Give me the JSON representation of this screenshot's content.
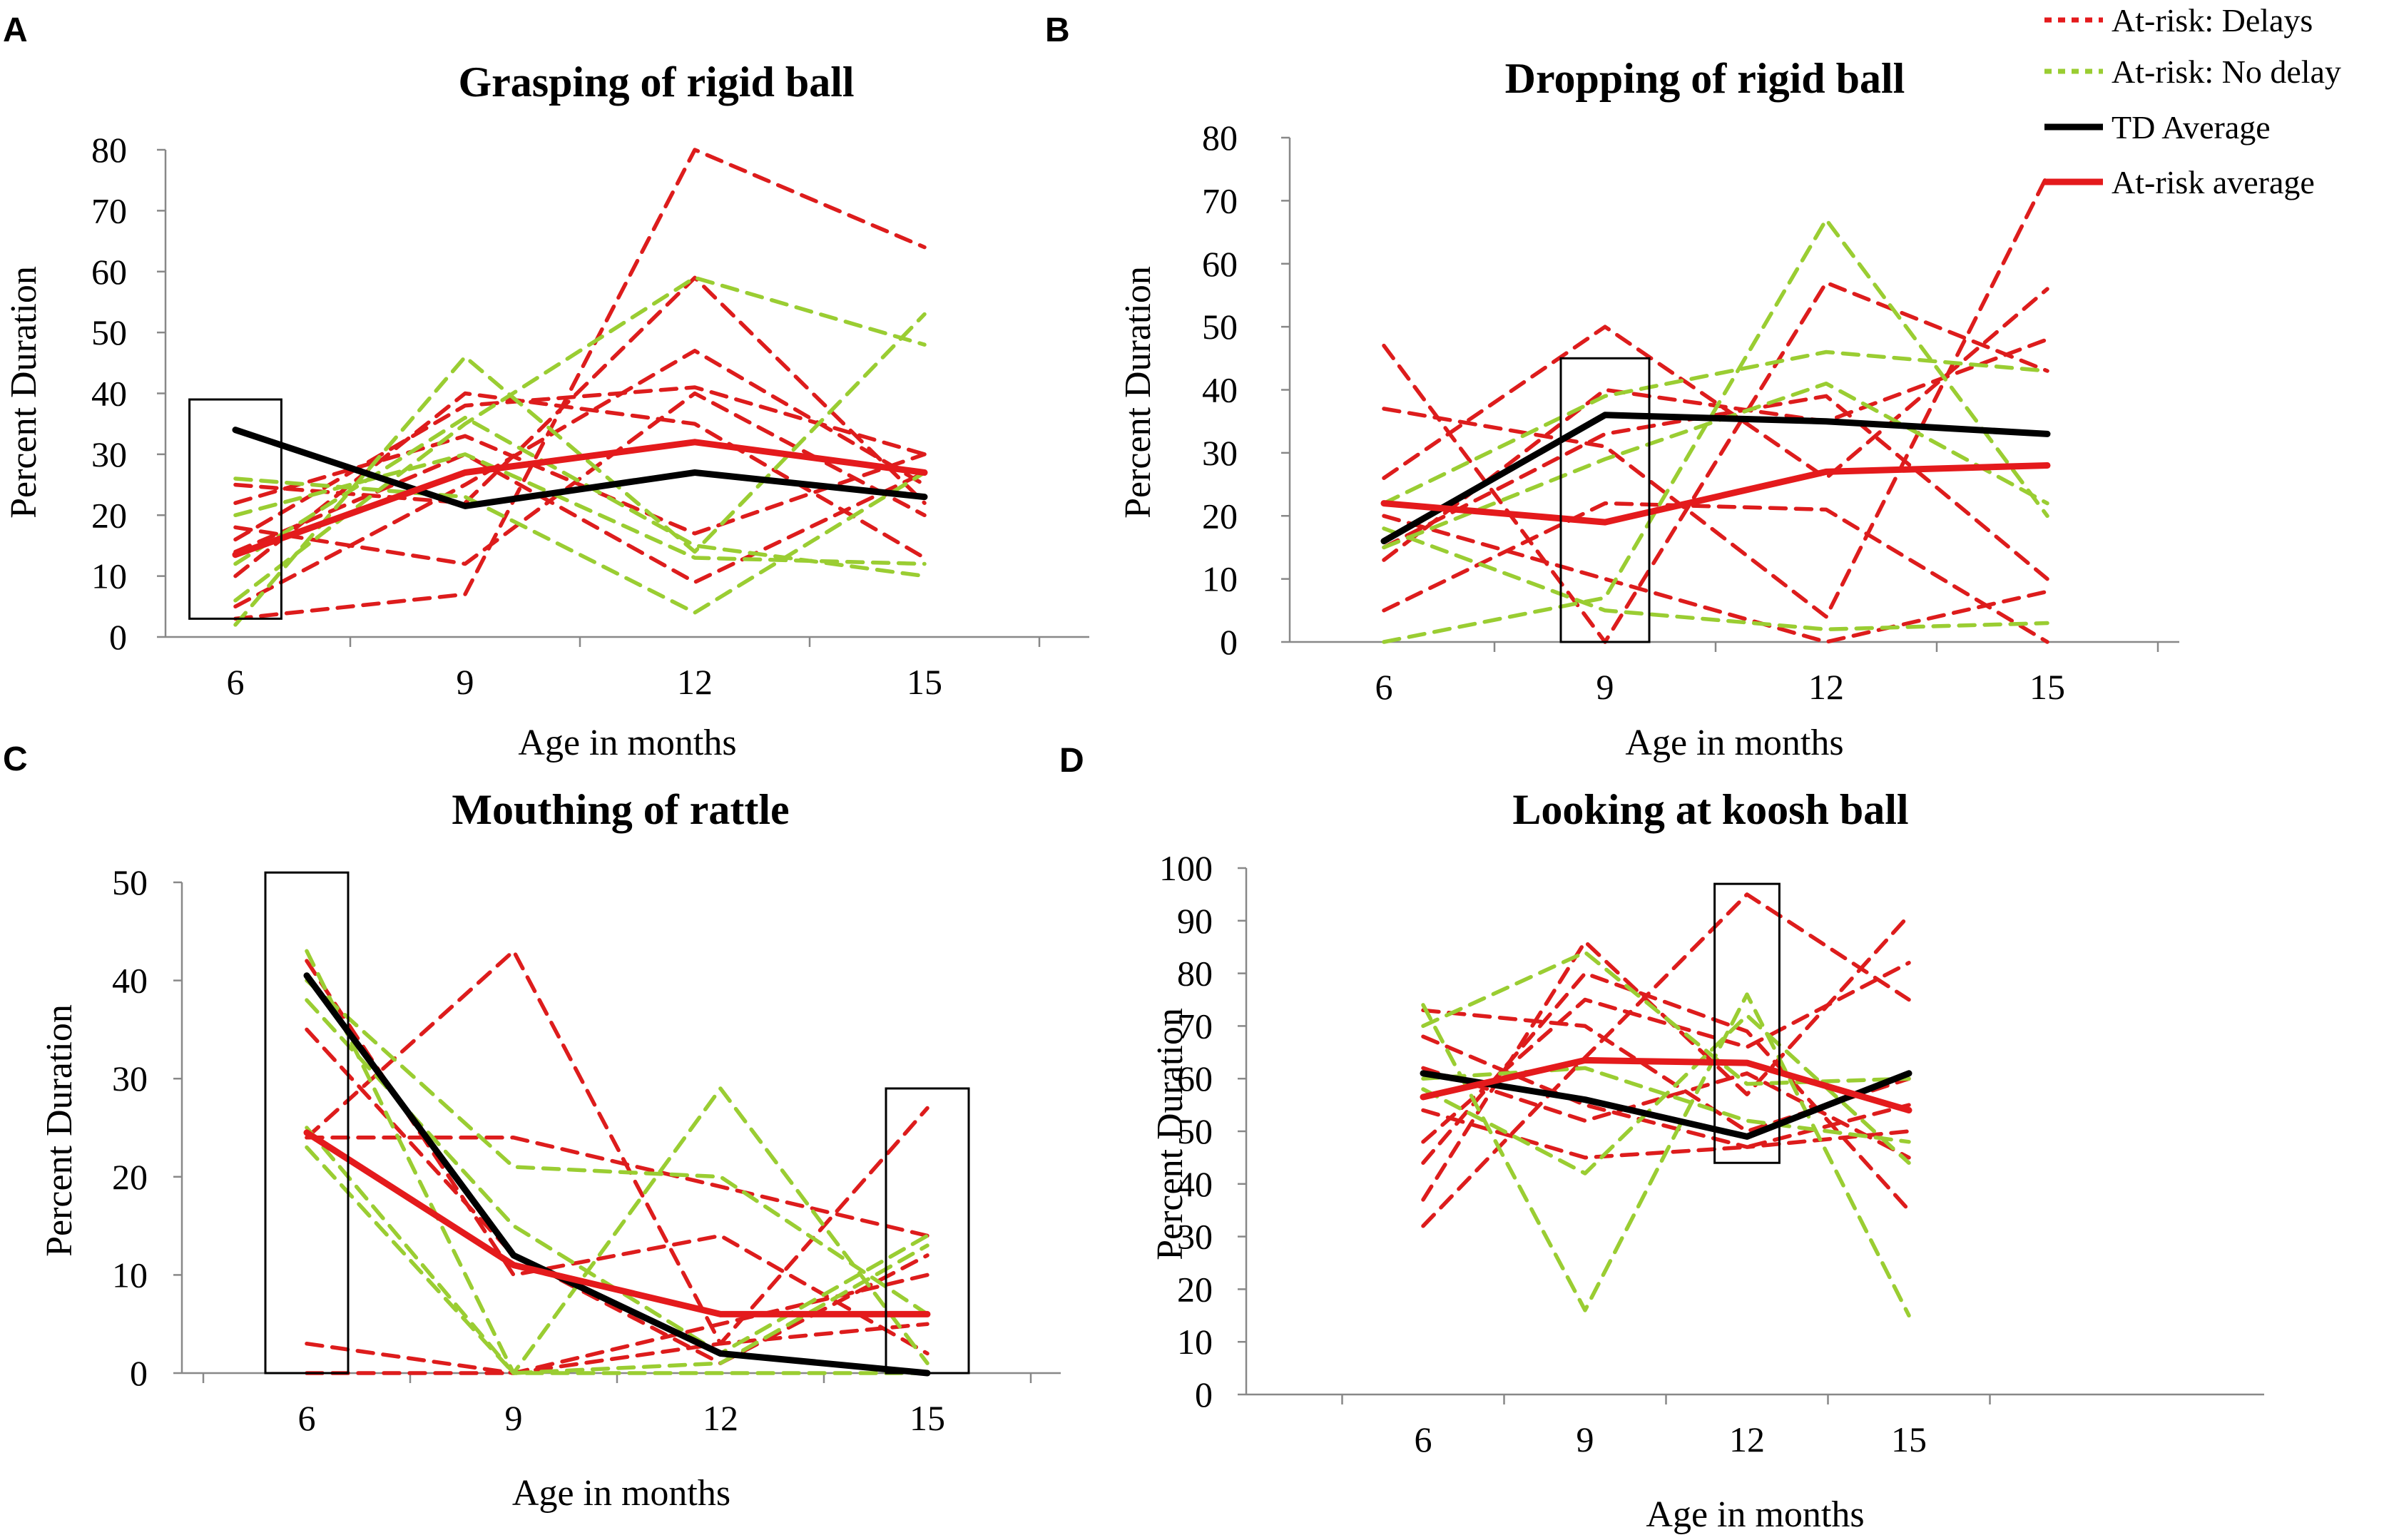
{
  "chart_data": [
    {
      "type": "line",
      "panel_letter": "A",
      "title": "Grasping of rigid ball",
      "xlabel": "Age in months",
      "ylabel": "Percent Duration",
      "x": [
        6,
        9,
        12,
        15
      ],
      "ylim": [
        0,
        80
      ],
      "yticks": [
        0,
        10,
        20,
        30,
        40,
        50,
        60,
        70,
        80
      ],
      "highlight_boxes": [
        {
          "x": 6,
          "y_range": [
            3,
            39
          ]
        }
      ],
      "series": [
        {
          "name": "At-risk: Delays",
          "values": [
            3,
            7,
            80,
            64
          ]
        },
        {
          "name": "At-risk: Delays",
          "values": [
            16,
            38,
            41,
            30
          ]
        },
        {
          "name": "At-risk: Delays",
          "values": [
            5,
            25,
            47,
            25
          ]
        },
        {
          "name": "At-risk: Delays",
          "values": [
            22,
            33,
            17,
            30
          ]
        },
        {
          "name": "At-risk: Delays",
          "values": [
            18,
            12,
            40,
            20
          ]
        },
        {
          "name": "At-risk: Delays",
          "values": [
            14,
            30,
            9,
            27
          ]
        },
        {
          "name": "At-risk: Delays",
          "values": [
            25,
            22,
            59,
            22
          ]
        },
        {
          "name": "At-risk: Delays",
          "values": [
            10,
            40,
            35,
            13
          ]
        },
        {
          "name": "At-risk: No delay",
          "values": [
            2,
            46,
            14,
            53
          ]
        },
        {
          "name": "At-risk: No delay",
          "values": [
            6,
            35,
            59,
            48
          ]
        },
        {
          "name": "At-risk: No delay",
          "values": [
            26,
            23,
            4,
            27
          ]
        },
        {
          "name": "At-risk: No delay",
          "values": [
            12,
            36,
            15,
            10
          ]
        },
        {
          "name": "At-risk: No delay",
          "values": [
            20,
            30,
            13,
            12
          ]
        },
        {
          "name": "TD Average",
          "values": [
            34,
            21.5,
            27,
            23
          ]
        },
        {
          "name": "At-risk average",
          "values": [
            13.5,
            27,
            32,
            27
          ]
        }
      ]
    },
    {
      "type": "line",
      "panel_letter": "B",
      "title": "Dropping of rigid ball",
      "xlabel": "Age in months",
      "ylabel": "Percent Duration",
      "x": [
        6,
        9,
        12,
        15
      ],
      "ylim": [
        0,
        80
      ],
      "yticks": [
        0,
        10,
        20,
        30,
        40,
        50,
        60,
        70,
        80
      ],
      "highlight_boxes": [
        {
          "x": 9,
          "y_range": [
            0,
            45
          ]
        }
      ],
      "series": [
        {
          "name": "At-risk: Delays",
          "values": [
            47,
            0,
            57,
            43
          ]
        },
        {
          "name": "At-risk: Delays",
          "values": [
            37,
            31,
            4,
            74
          ]
        },
        {
          "name": "At-risk: Delays",
          "values": [
            26,
            50,
            26,
            56
          ]
        },
        {
          "name": "At-risk: Delays",
          "values": [
            13,
            40,
            35,
            48
          ]
        },
        {
          "name": "At-risk: Delays",
          "values": [
            5,
            22,
            21,
            0
          ]
        },
        {
          "name": "At-risk: Delays",
          "values": [
            20,
            10,
            0,
            8
          ]
        },
        {
          "name": "At-risk: Delays",
          "values": [
            15,
            33,
            39,
            10
          ]
        },
        {
          "name": "At-risk: No delay",
          "values": [
            0,
            7,
            67,
            20
          ]
        },
        {
          "name": "At-risk: No delay",
          "values": [
            22,
            39,
            46,
            43
          ]
        },
        {
          "name": "At-risk: No delay",
          "values": [
            18,
            5,
            2,
            3
          ]
        },
        {
          "name": "At-risk: No delay",
          "values": [
            15,
            29,
            41,
            22
          ]
        },
        {
          "name": "TD Average",
          "values": [
            16,
            36,
            35,
            33
          ]
        },
        {
          "name": "At-risk average",
          "values": [
            22,
            19,
            27,
            28
          ]
        }
      ]
    },
    {
      "type": "line",
      "panel_letter": "C",
      "title": "Mouthing of rattle",
      "xlabel": "Age in months",
      "ylabel": "Percent Duration",
      "x": [
        6,
        9,
        12,
        15
      ],
      "ylim": [
        0,
        50
      ],
      "yticks": [
        0,
        10,
        20,
        30,
        40,
        50
      ],
      "highlight_boxes": [
        {
          "x": 6,
          "y_range": [
            0,
            51
          ]
        },
        {
          "x": 15,
          "y_range": [
            0,
            29
          ]
        }
      ],
      "series": [
        {
          "name": "At-risk: Delays",
          "values": [
            24,
            43,
            3,
            27
          ]
        },
        {
          "name": "At-risk: Delays",
          "values": [
            42,
            10,
            14,
            2
          ]
        },
        {
          "name": "At-risk: Delays",
          "values": [
            35,
            12,
            1,
            12
          ]
        },
        {
          "name": "At-risk: Delays",
          "values": [
            24,
            24,
            19,
            14
          ]
        },
        {
          "name": "At-risk: Delays",
          "values": [
            3,
            0,
            3,
            5
          ]
        },
        {
          "name": "At-risk: Delays",
          "values": [
            0,
            0,
            5,
            10
          ]
        },
        {
          "name": "At-risk: No delay",
          "values": [
            43,
            0,
            29,
            1
          ]
        },
        {
          "name": "At-risk: No delay",
          "values": [
            40,
            21,
            20,
            6
          ]
        },
        {
          "name": "At-risk: No delay",
          "values": [
            38,
            15,
            2,
            14
          ]
        },
        {
          "name": "At-risk: No delay",
          "values": [
            25,
            0,
            0,
            0
          ]
        },
        {
          "name": "At-risk: No delay",
          "values": [
            23,
            0,
            1,
            13
          ]
        },
        {
          "name": "TD Average",
          "values": [
            40.5,
            12,
            2,
            0
          ]
        },
        {
          "name": "At-risk average",
          "values": [
            24.5,
            11,
            6,
            6
          ]
        }
      ]
    },
    {
      "type": "line",
      "panel_letter": "D",
      "title": "Looking at koosh ball",
      "xlabel": "Age in months",
      "ylabel": "Percent Duration",
      "x": [
        6,
        9,
        12,
        15
      ],
      "ylim": [
        0,
        100
      ],
      "yticks": [
        0,
        10,
        20,
        30,
        40,
        50,
        60,
        70,
        80,
        90,
        100
      ],
      "highlight_boxes": [
        {
          "x": 12,
          "y_range": [
            44,
            97
          ]
        }
      ],
      "series": [
        {
          "name": "At-risk: Delays",
          "values": [
            32,
            64,
            95,
            75
          ]
        },
        {
          "name": "At-risk: Delays",
          "values": [
            37,
            86,
            57,
            91
          ]
        },
        {
          "name": "At-risk: Delays",
          "values": [
            44,
            80,
            69,
            35
          ]
        },
        {
          "name": "At-risk: Delays",
          "values": [
            48,
            75,
            66,
            82
          ]
        },
        {
          "name": "At-risk: Delays",
          "values": [
            54,
            45,
            47,
            55
          ]
        },
        {
          "name": "At-risk: Delays",
          "values": [
            62,
            52,
            61,
            45
          ]
        },
        {
          "name": "At-risk: Delays",
          "values": [
            68,
            55,
            47,
            50
          ]
        },
        {
          "name": "At-risk: Delays",
          "values": [
            73,
            70,
            50,
            60
          ]
        },
        {
          "name": "At-risk: No delay",
          "values": [
            74,
            16,
            76,
            15
          ]
        },
        {
          "name": "At-risk: No delay",
          "values": [
            70,
            84,
            59,
            60
          ]
        },
        {
          "name": "At-risk: No delay",
          "values": [
            58,
            42,
            72,
            44
          ]
        },
        {
          "name": "At-risk: No delay",
          "values": [
            60,
            62,
            52,
            48
          ]
        },
        {
          "name": "TD Average",
          "values": [
            61,
            56,
            49,
            61
          ]
        },
        {
          "name": "At-risk average",
          "values": [
            56.5,
            63.5,
            63,
            54
          ]
        }
      ]
    }
  ],
  "legend": {
    "items": [
      {
        "label": "At-risk: Delays",
        "color": "#e41a1c",
        "style": "dotted"
      },
      {
        "label": "At-risk: No delay",
        "color": "#9acd32",
        "style": "dotted"
      },
      {
        "label": "TD Average",
        "color": "#000000",
        "style": "solid"
      },
      {
        "label": "At-risk average",
        "color": "#e41a1c",
        "style": "solid"
      }
    ]
  },
  "colors": {
    "delays": "#dd1c1c",
    "no_delay": "#9acd32",
    "td_average": "#000000",
    "at_risk_average": "#e41a1c",
    "axis": "#888888",
    "box": "#000000"
  }
}
